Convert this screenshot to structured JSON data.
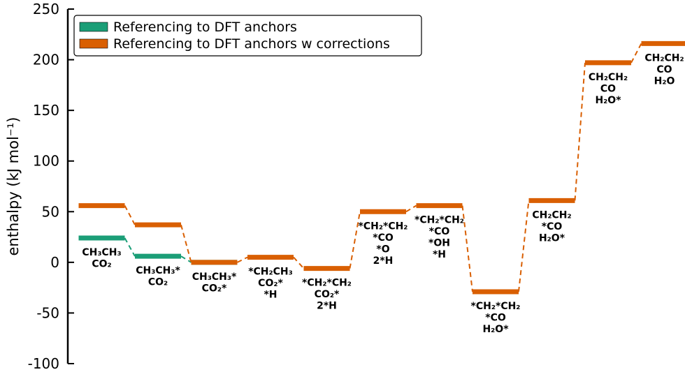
{
  "chart_data": {
    "type": "energy-level-diagram",
    "title": "",
    "xlabel": "",
    "ylabel": "enthalpy (kJ mol⁻¹)",
    "ylim": [
      -100,
      250
    ],
    "yticks": [
      -100,
      -50,
      0,
      50,
      100,
      150,
      200,
      250
    ],
    "grid": false,
    "legend_position": "top-left",
    "series": [
      {
        "name": "Referencing to DFT anchors",
        "color": "#1b9e77",
        "levels": [
          {
            "step": 0,
            "value": 24
          },
          {
            "step": 1,
            "value": 6
          },
          {
            "step": 2,
            "value": 0
          }
        ]
      },
      {
        "name": "Referencing to DFT anchors w corrections",
        "color": "#d95f02",
        "levels": [
          {
            "step": 0,
            "value": 56
          },
          {
            "step": 1,
            "value": 37
          },
          {
            "step": 2,
            "value": 0
          },
          {
            "step": 3,
            "value": 5
          },
          {
            "step": 4,
            "value": -6
          },
          {
            "step": 5,
            "value": 50
          },
          {
            "step": 6,
            "value": 56
          },
          {
            "step": 7,
            "value": -29
          },
          {
            "step": 8,
            "value": 61
          },
          {
            "step": 9,
            "value": 197
          },
          {
            "step": 10,
            "value": 216
          }
        ]
      }
    ],
    "state_labels": [
      {
        "step": 0,
        "lines": [
          "CH₃CH₃",
          "CO₂"
        ]
      },
      {
        "step": 1,
        "lines": [
          "CH₃CH₃*",
          "CO₂"
        ]
      },
      {
        "step": 2,
        "lines": [
          "CH₃CH₃*",
          "CO₂*"
        ]
      },
      {
        "step": 3,
        "lines": [
          "*CH₂CH₃",
          "CO₂*",
          "*H"
        ]
      },
      {
        "step": 4,
        "lines": [
          "*CH₂*CH₂",
          "CO₂*",
          "2*H"
        ]
      },
      {
        "step": 5,
        "lines": [
          "*CH₂*CH₂",
          "*CO",
          "*O",
          "2*H"
        ]
      },
      {
        "step": 6,
        "lines": [
          "*CH₂*CH₂",
          "*CO",
          "*OH",
          "*H"
        ]
      },
      {
        "step": 7,
        "lines": [
          "*CH₂*CH₂",
          "*CO",
          "H₂O*"
        ]
      },
      {
        "step": 8,
        "lines": [
          "CH₂CH₂",
          "*CO",
          "H₂O*"
        ]
      },
      {
        "step": 9,
        "lines": [
          "CH₂CH₂",
          "CO",
          "H₂O*"
        ]
      },
      {
        "step": 10,
        "lines": [
          "CH₂CH₂",
          "CO",
          "H₂O"
        ]
      }
    ]
  }
}
